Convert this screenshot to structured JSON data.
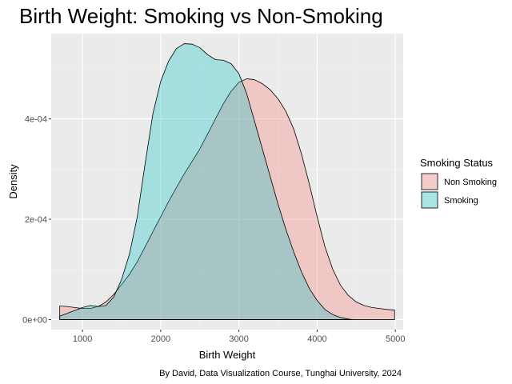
{
  "chart_data": {
    "type": "area",
    "title": "Birth Weight: Smoking vs Non-Smoking",
    "xlabel": "Birth Weight",
    "ylabel": "Density",
    "caption": "By David, Data Visualization Course, Tunghai University, 2024",
    "xlim": [
      600,
      5100
    ],
    "ylim": [
      -2e-05,
      0.00057
    ],
    "x_ticks": [
      1000,
      2000,
      3000,
      4000,
      5000
    ],
    "x_tick_labels": [
      "1000",
      "2000",
      "3000",
      "4000",
      "5000"
    ],
    "y_ticks": [
      0,
      0.0002,
      0.0004
    ],
    "y_tick_labels": [
      "0e+00",
      "2e-04",
      "4e-04"
    ],
    "grid": true,
    "legend": {
      "title": "Smoking Status",
      "placement": "right"
    },
    "series": [
      {
        "name": "Non Smoking",
        "color": "#F8766D",
        "x": [
          709,
          800,
          900,
          1000,
          1100,
          1200,
          1300,
          1400,
          1500,
          1600,
          1700,
          1800,
          1900,
          2000,
          2100,
          2200,
          2300,
          2400,
          2500,
          2600,
          2700,
          2800,
          2900,
          3000,
          3100,
          3200,
          3300,
          3400,
          3500,
          3600,
          3700,
          3800,
          3900,
          4000,
          4100,
          4200,
          4300,
          4400,
          4500,
          4600,
          4700,
          4800,
          4900,
          4990
        ],
        "values": [
          2.7e-05,
          2.6e-05,
          2.4e-05,
          2.2e-05,
          2.2e-05,
          2.6e-05,
          3.5e-05,
          5e-05,
          7e-05,
          9e-05,
          0.000115,
          0.000145,
          0.000175,
          0.000205,
          0.000235,
          0.000263,
          0.00029,
          0.000315,
          0.00034,
          0.00037,
          0.0004,
          0.00043,
          0.000455,
          0.000473,
          0.00048,
          0.000478,
          0.00047,
          0.000458,
          0.00044,
          0.000415,
          0.00038,
          0.00033,
          0.00027,
          0.000205,
          0.000145,
          0.0001,
          6.8e-05,
          4.8e-05,
          3.5e-05,
          2.8e-05,
          2.4e-05,
          2.2e-05,
          2e-05,
          1.9e-05
        ]
      },
      {
        "name": "Smoking",
        "color": "#00BFC4",
        "x": [
          709,
          800,
          900,
          1000,
          1100,
          1200,
          1300,
          1400,
          1500,
          1600,
          1700,
          1800,
          1900,
          2000,
          2100,
          2200,
          2300,
          2400,
          2500,
          2600,
          2700,
          2800,
          2900,
          3000,
          3100,
          3200,
          3300,
          3400,
          3500,
          3600,
          3700,
          3800,
          3900,
          4000,
          4100,
          4200,
          4300,
          4400,
          4450
        ],
        "values": [
          7e-06,
          1.2e-05,
          1.8e-05,
          2.4e-05,
          2.8e-05,
          2.6e-05,
          2.8e-05,
          4.5e-05,
          8e-05,
          0.00013,
          0.000205,
          0.00031,
          0.00041,
          0.000475,
          0.000515,
          0.00054,
          0.00055,
          0.000549,
          0.000542,
          0.000528,
          0.000518,
          0.000517,
          0.00051,
          0.00049,
          0.00045,
          0.000395,
          0.00034,
          0.000285,
          0.00023,
          0.00018,
          0.000135,
          9.5e-05,
          6.2e-05,
          3.8e-05,
          2e-05,
          1e-05,
          4e-06,
          1e-06,
          0.0
        ]
      }
    ]
  }
}
